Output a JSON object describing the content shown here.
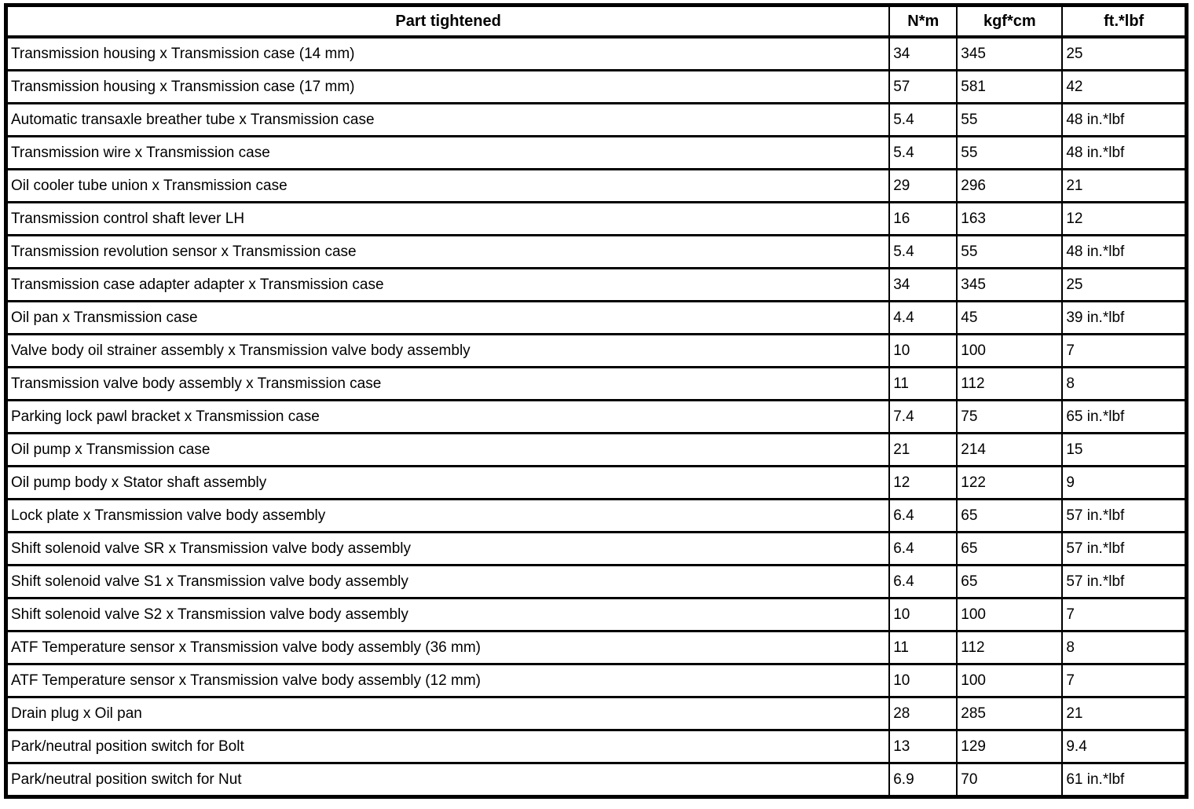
{
  "table": {
    "columns": [
      "Part tightened",
      "N*m",
      "kgf*cm",
      "ft.*lbf"
    ],
    "rows": [
      [
        "Transmission housing x Transmission case (14 mm)",
        "34",
        "345",
        "25"
      ],
      [
        "Transmission housing x Transmission case (17 mm)",
        "57",
        "581",
        "42"
      ],
      [
        "Automatic transaxle breather tube x Transmission case",
        "5.4",
        "55",
        "48 in.*lbf"
      ],
      [
        "Transmission wire x Transmission case",
        "5.4",
        "55",
        "48 in.*lbf"
      ],
      [
        "Oil cooler tube union x Transmission case",
        "29",
        "296",
        "21"
      ],
      [
        "Transmission control shaft lever LH",
        "16",
        "163",
        "12"
      ],
      [
        "Transmission revolution sensor x Transmission case",
        "5.4",
        "55",
        "48 in.*lbf"
      ],
      [
        "Transmission case adapter adapter x Transmission case",
        "34",
        "345",
        "25"
      ],
      [
        "Oil pan x Transmission case",
        "4.4",
        "45",
        "39 in.*lbf"
      ],
      [
        "Valve body oil strainer assembly x Transmission valve body assembly",
        "10",
        "100",
        "7"
      ],
      [
        "Transmission valve body assembly x Transmission case",
        "11",
        "112",
        "8"
      ],
      [
        "Parking lock pawl bracket x Transmission case",
        "7.4",
        "75",
        "65 in.*lbf"
      ],
      [
        "Oil pump x Transmission case",
        "21",
        "214",
        "15"
      ],
      [
        "Oil pump body x Stator shaft assembly",
        "12",
        "122",
        "9"
      ],
      [
        "Lock plate x Transmission valve body assembly",
        "6.4",
        "65",
        "57 in.*lbf"
      ],
      [
        "Shift solenoid valve SR x Transmission valve body assembly",
        "6.4",
        "65",
        "57 in.*lbf"
      ],
      [
        "Shift solenoid valve S1 x Transmission valve body assembly",
        "6.4",
        "65",
        "57 in.*lbf"
      ],
      [
        "Shift solenoid valve S2 x Transmission valve body assembly",
        "10",
        "100",
        "7"
      ],
      [
        "ATF Temperature sensor x Transmission valve body assembly (36 mm)",
        "11",
        "112",
        "8"
      ],
      [
        "ATF Temperature sensor x Transmission valve body assembly (12 mm)",
        "10",
        "100",
        "7"
      ],
      [
        "Drain plug x Oil pan",
        "28",
        "285",
        "21"
      ],
      [
        "Park/neutral position switch for Bolt",
        "13",
        "129",
        "9.4"
      ],
      [
        "Park/neutral position switch for Nut",
        "6.9",
        "70",
        "61 in.*lbf"
      ]
    ]
  }
}
